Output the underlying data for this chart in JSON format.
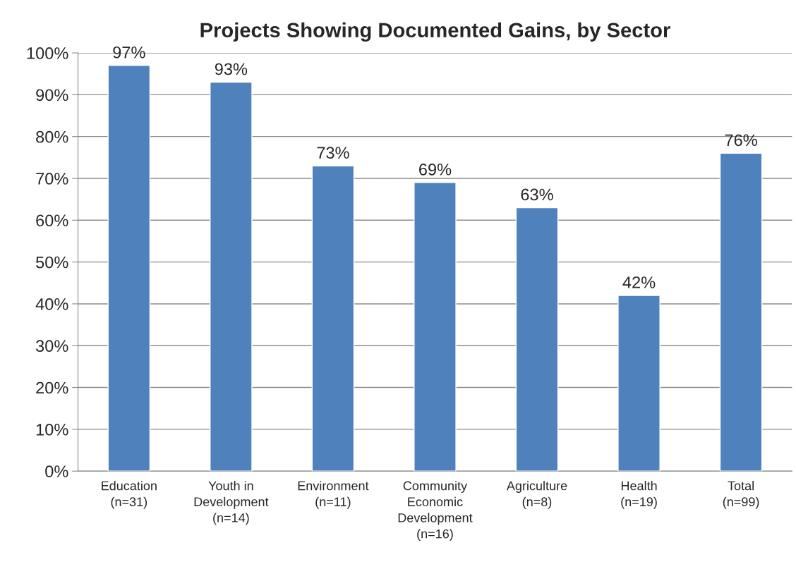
{
  "chart_data": {
    "type": "bar",
    "title": "Projects Showing Documented Gains, by Sector",
    "categories": [
      "Education\n(n=31)",
      "Youth in\nDevelopment\n(n=14)",
      "Environment\n(n=11)",
      "Community\nEconomic\nDevelopment\n(n=16)",
      "Agriculture\n(n=8)",
      "Health\n(n=19)",
      "Total\n(n=99)"
    ],
    "values": [
      97,
      93,
      73,
      69,
      63,
      42,
      76
    ],
    "value_labels": [
      "97%",
      "93%",
      "73%",
      "69%",
      "63%",
      "42%",
      "76%"
    ],
    "color": "#4f81bd",
    "ylim": [
      0,
      100
    ],
    "yticks": [
      {
        "value": 0,
        "label": "0%"
      },
      {
        "value": 10,
        "label": "10%"
      },
      {
        "value": 20,
        "label": "20%"
      },
      {
        "value": 30,
        "label": "30%"
      },
      {
        "value": 40,
        "label": "40%"
      },
      {
        "value": 50,
        "label": "50%"
      },
      {
        "value": 60,
        "label": "60%"
      },
      {
        "value": 70,
        "label": "70%"
      },
      {
        "value": 80,
        "label": "80%"
      },
      {
        "value": 90,
        "label": "90%"
      },
      {
        "value": 100,
        "label": "100%"
      }
    ],
    "grid": "y"
  }
}
